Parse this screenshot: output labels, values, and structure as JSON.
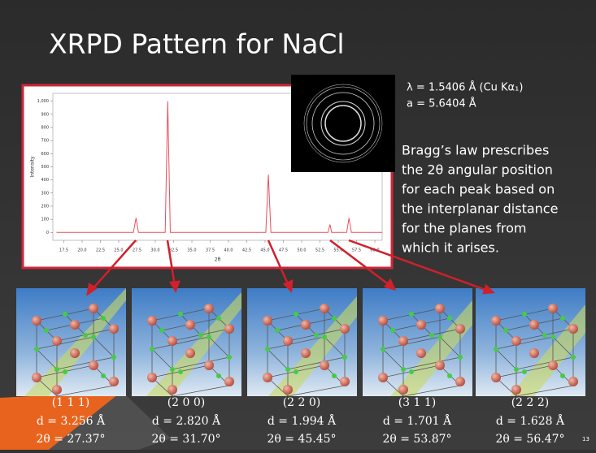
{
  "title": "XRPD Pattern for NaCl",
  "wavelength": "λ = 1.5406 Å  (Cu Kα₁)",
  "lattice": "a = 5.6404 Å",
  "description": [
    "Bragg’s law prescribes",
    "the 2θ angular position",
    "for each peak based on",
    "the interplanar distance",
    "for the planes from",
    "which it arises."
  ],
  "planes": [
    {
      "hkl": "(1 1 1)",
      "d": "d = 3.256 Å",
      "two_theta": "2θ = 27.37°"
    },
    {
      "hkl": "(2 0 0)",
      "d": "d = 2.820 Å",
      "two_theta": "2θ = 31.70°"
    },
    {
      "hkl": "(2 2 0)",
      "d": "d = 1.994 Å",
      "two_theta": "2θ = 45.45°"
    },
    {
      "hkl": "(3 1 1)",
      "d": "d = 1.701 Å",
      "two_theta": "2θ = 53.87°"
    },
    {
      "hkl": "(2 2 2)",
      "d": "d = 1.628 Å",
      "two_theta": "2θ = 56.47°"
    }
  ],
  "page_number": "13",
  "chart_data": {
    "type": "line",
    "xlabel": "2θ",
    "ylabel": "Intensity",
    "color": "#e8505a",
    "x": [
      16.5,
      27.0,
      27.37,
      27.7,
      31.35,
      31.7,
      32.05,
      45.1,
      45.45,
      45.8,
      53.6,
      53.87,
      54.1,
      56.15,
      56.47,
      56.8,
      61
    ],
    "values": [
      0,
      0,
      110,
      0,
      0,
      1000,
      0,
      0,
      440,
      0,
      0,
      60,
      0,
      0,
      110,
      0,
      0
    ],
    "xlim": [
      16,
      61
    ],
    "ylim": [
      -60,
      1060
    ],
    "xticks": [
      {
        "value": 17.5,
        "label": "17.5"
      },
      {
        "value": 20,
        "label": "20.0"
      },
      {
        "value": 22.5,
        "label": "22.5"
      },
      {
        "value": 25,
        "label": "25.0"
      },
      {
        "value": 27.5,
        "label": "27.5"
      },
      {
        "value": 30,
        "label": "30.0"
      },
      {
        "value": 32.5,
        "label": "32.5"
      },
      {
        "value": 35,
        "label": "35.0"
      },
      {
        "value": 37.5,
        "label": "37.5"
      },
      {
        "value": 40,
        "label": "40.0"
      },
      {
        "value": 42.5,
        "label": "42.5"
      },
      {
        "value": 45,
        "label": "45.0"
      },
      {
        "value": 47.5,
        "label": "47.5"
      },
      {
        "value": 50,
        "label": "50.0"
      },
      {
        "value": 52.5,
        "label": "52.5"
      },
      {
        "value": 55,
        "label": "55.0"
      },
      {
        "value": 57.5,
        "label": "57.5"
      },
      {
        "value": 60,
        "label": "60.0"
      }
    ],
    "yticks": [
      0,
      100,
      200,
      300,
      400,
      500,
      600,
      700,
      800,
      900,
      {
        "value": 1000,
        "label": "1,000"
      }
    ],
    "grid": false
  }
}
